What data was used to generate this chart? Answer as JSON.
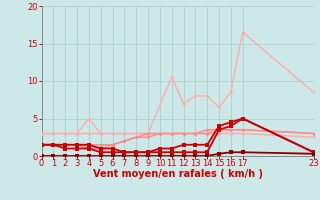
{
  "background_color": "#cce8e8",
  "grid_color": "#aacece",
  "xlabel": "Vent moyen/en rafales ( km/h )",
  "xlabel_color": "#cc0000",
  "xlabel_fontsize": 7,
  "xlim": [
    0,
    23
  ],
  "ylim": [
    0,
    20
  ],
  "xticks": [
    0,
    1,
    2,
    3,
    4,
    5,
    6,
    7,
    8,
    9,
    10,
    11,
    12,
    13,
    14,
    15,
    16,
    17,
    23
  ],
  "yticks": [
    0,
    5,
    10,
    15,
    20
  ],
  "tick_color": "#cc0000",
  "tick_fontsize": 6,
  "lines": [
    {
      "x": [
        0,
        1,
        2,
        3,
        4,
        5,
        6,
        7,
        8,
        9,
        10,
        11,
        12,
        13,
        14,
        15,
        16,
        17,
        23
      ],
      "y": [
        3.0,
        3.0,
        3.0,
        3.0,
        3.0,
        3.0,
        3.0,
        3.0,
        3.0,
        3.0,
        3.0,
        3.0,
        3.0,
        3.0,
        3.0,
        3.0,
        3.0,
        3.0,
        2.5
      ],
      "color": "#ffaaaa",
      "lw": 1.0,
      "marker": "D",
      "ms": 1.8
    },
    {
      "x": [
        0,
        3,
        4,
        5,
        9,
        11,
        12,
        13,
        14,
        15,
        16,
        17,
        23
      ],
      "y": [
        3.0,
        3.0,
        5.0,
        3.0,
        3.0,
        10.5,
        7.0,
        8.0,
        8.0,
        6.5,
        8.5,
        16.5,
        8.5
      ],
      "color": "#ffaaaa",
      "lw": 1.0,
      "marker": "D",
      "ms": 1.8
    },
    {
      "x": [
        0,
        1,
        2,
        3,
        4,
        5,
        6,
        7,
        8,
        9,
        10,
        11,
        12,
        13,
        14,
        15,
        16,
        17,
        23
      ],
      "y": [
        1.5,
        1.5,
        1.5,
        1.5,
        1.5,
        1.5,
        1.5,
        2.0,
        2.5,
        3.0,
        3.0,
        3.0,
        3.0,
        3.0,
        3.0,
        3.5,
        3.5,
        3.5,
        3.0
      ],
      "color": "#ff8888",
      "lw": 1.0,
      "marker": "D",
      "ms": 1.8
    },
    {
      "x": [
        0,
        1,
        2,
        3,
        4,
        5,
        6,
        7,
        8,
        9,
        10,
        11,
        12,
        13,
        14,
        15,
        16,
        17,
        23
      ],
      "y": [
        1.5,
        1.5,
        1.5,
        1.5,
        1.0,
        1.0,
        1.5,
        2.0,
        2.5,
        2.5,
        3.0,
        3.0,
        3.0,
        3.0,
        3.5,
        3.5,
        3.5,
        3.5,
        3.0
      ],
      "color": "#ff8888",
      "lw": 1.0,
      "marker": "D",
      "ms": 1.8
    },
    {
      "x": [
        0,
        1,
        2,
        3,
        4,
        5,
        6,
        7,
        8,
        9,
        10,
        11,
        12,
        13,
        14,
        15,
        16,
        17,
        23
      ],
      "y": [
        1.5,
        1.5,
        1.5,
        1.5,
        1.5,
        1.0,
        1.0,
        0.5,
        0.5,
        0.5,
        1.0,
        1.0,
        1.5,
        1.5,
        1.5,
        4.0,
        4.5,
        5.0,
        0.5
      ],
      "color": "#cc0000",
      "lw": 1.3,
      "marker": "s",
      "ms": 2.2
    },
    {
      "x": [
        0,
        1,
        2,
        3,
        4,
        5,
        6,
        7,
        8,
        9,
        10,
        11,
        12,
        13,
        14,
        15,
        16,
        17,
        23
      ],
      "y": [
        1.5,
        1.5,
        1.0,
        1.0,
        1.0,
        0.5,
        0.5,
        0.5,
        0.5,
        0.5,
        0.5,
        0.5,
        0.5,
        0.5,
        0.5,
        3.5,
        4.0,
        5.0,
        0.5
      ],
      "color": "#cc0000",
      "lw": 1.3,
      "marker": "s",
      "ms": 2.2
    },
    {
      "x": [
        0,
        1,
        2,
        3,
        4,
        5,
        6,
        7,
        8,
        9,
        10,
        11,
        12,
        13,
        14,
        15,
        16,
        17,
        23
      ],
      "y": [
        0,
        0,
        0,
        0,
        0,
        0,
        0,
        0,
        0,
        0,
        0,
        0,
        0,
        0,
        0,
        0.3,
        0.5,
        0.5,
        0.3
      ],
      "color": "#880000",
      "lw": 1.3,
      "marker": "s",
      "ms": 2.2
    }
  ]
}
